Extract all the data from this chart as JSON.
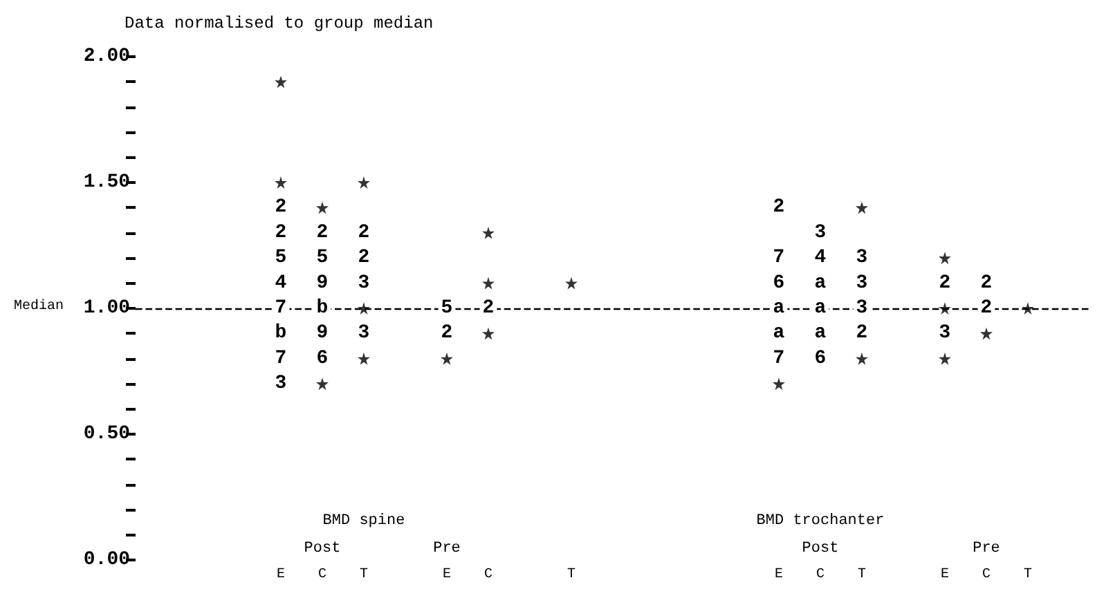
{
  "chart_data": {
    "type": "scatter",
    "title": "Data normalised to group median",
    "categories": [
      null,
      null,
      null,
      "E",
      "C",
      "T",
      null,
      "E",
      "C",
      null,
      "T",
      null,
      null,
      null,
      null,
      "E",
      "C",
      "T",
      null,
      "E",
      "C",
      "T",
      null
    ],
    "marker": "star",
    "ylim": [
      0,
      2
    ],
    "yticks": [
      {
        "value": 0,
        "label": "0.00"
      },
      {
        "value": 0.1,
        "label": null
      },
      {
        "value": 0.2,
        "label": null
      },
      {
        "value": 0.3,
        "label": null
      },
      {
        "value": 0.4,
        "label": null
      },
      {
        "value": 0.5,
        "label": "0.50"
      },
      {
        "value": 0.6,
        "label": null
      },
      {
        "value": 0.7,
        "label": null
      },
      {
        "value": 0.8,
        "label": null
      },
      {
        "value": 0.9,
        "label": null
      },
      {
        "value": 1,
        "label": "1.00"
      },
      {
        "value": 1.1,
        "label": null
      },
      {
        "value": 1.2,
        "label": null
      },
      {
        "value": 1.3,
        "label": null
      },
      {
        "value": 1.4,
        "label": null
      },
      {
        "value": 1.5,
        "label": "1.50"
      },
      {
        "value": 1.6,
        "label": null
      },
      {
        "value": 1.7,
        "label": null
      },
      {
        "value": 1.8,
        "label": null
      },
      {
        "value": 1.9,
        "label": null
      },
      {
        "value": 2,
        "label": "2.00"
      }
    ],
    "ref_lines": [
      {
        "axis": "y",
        "value": 1,
        "label": "Median",
        "line_style": "dashed",
        "color": "#000000"
      }
    ],
    "annotations": [
      "BMD spine",
      "Post",
      "Pre",
      "BMD trochanter",
      "Post",
      "Pre",
      "2",
      "2",
      "5",
      "4",
      "7",
      "b",
      "7",
      "3",
      "2",
      "5",
      "9",
      "b",
      "9",
      "6",
      "2",
      "2",
      "3",
      "3",
      "5",
      "2",
      "2",
      "2",
      "7",
      "6",
      "a",
      "a",
      "7",
      "3",
      "4",
      "a",
      "a",
      "a",
      "6",
      "3",
      "3",
      "3",
      "2",
      "2",
      "3",
      "2",
      "2"
    ],
    "series": [
      {
        "color": "#000000",
        "values": [
          null,
          null,
          null,
          1.9,
          1.4,
          1.5,
          null,
          0.8,
          1.3,
          null,
          1.1,
          null,
          null,
          null,
          null,
          0.7,
          null,
          1.4,
          null,
          1.2,
          0.9,
          1.0,
          null
        ]
      },
      {
        "color": "#000000",
        "values": [
          null,
          null,
          null,
          1.5,
          0.7,
          1.0,
          null,
          null,
          1.1,
          null,
          null,
          null,
          null,
          null,
          null,
          null,
          null,
          0.8,
          null,
          1.0,
          null,
          null,
          null
        ]
      },
      {
        "color": "#000000",
        "values": [
          null,
          null,
          null,
          null,
          null,
          0.8,
          null,
          null,
          0.9,
          null,
          null,
          null,
          null,
          null,
          null,
          null,
          null,
          null,
          null,
          0.8,
          null,
          null,
          null
        ]
      }
    ]
  }
}
